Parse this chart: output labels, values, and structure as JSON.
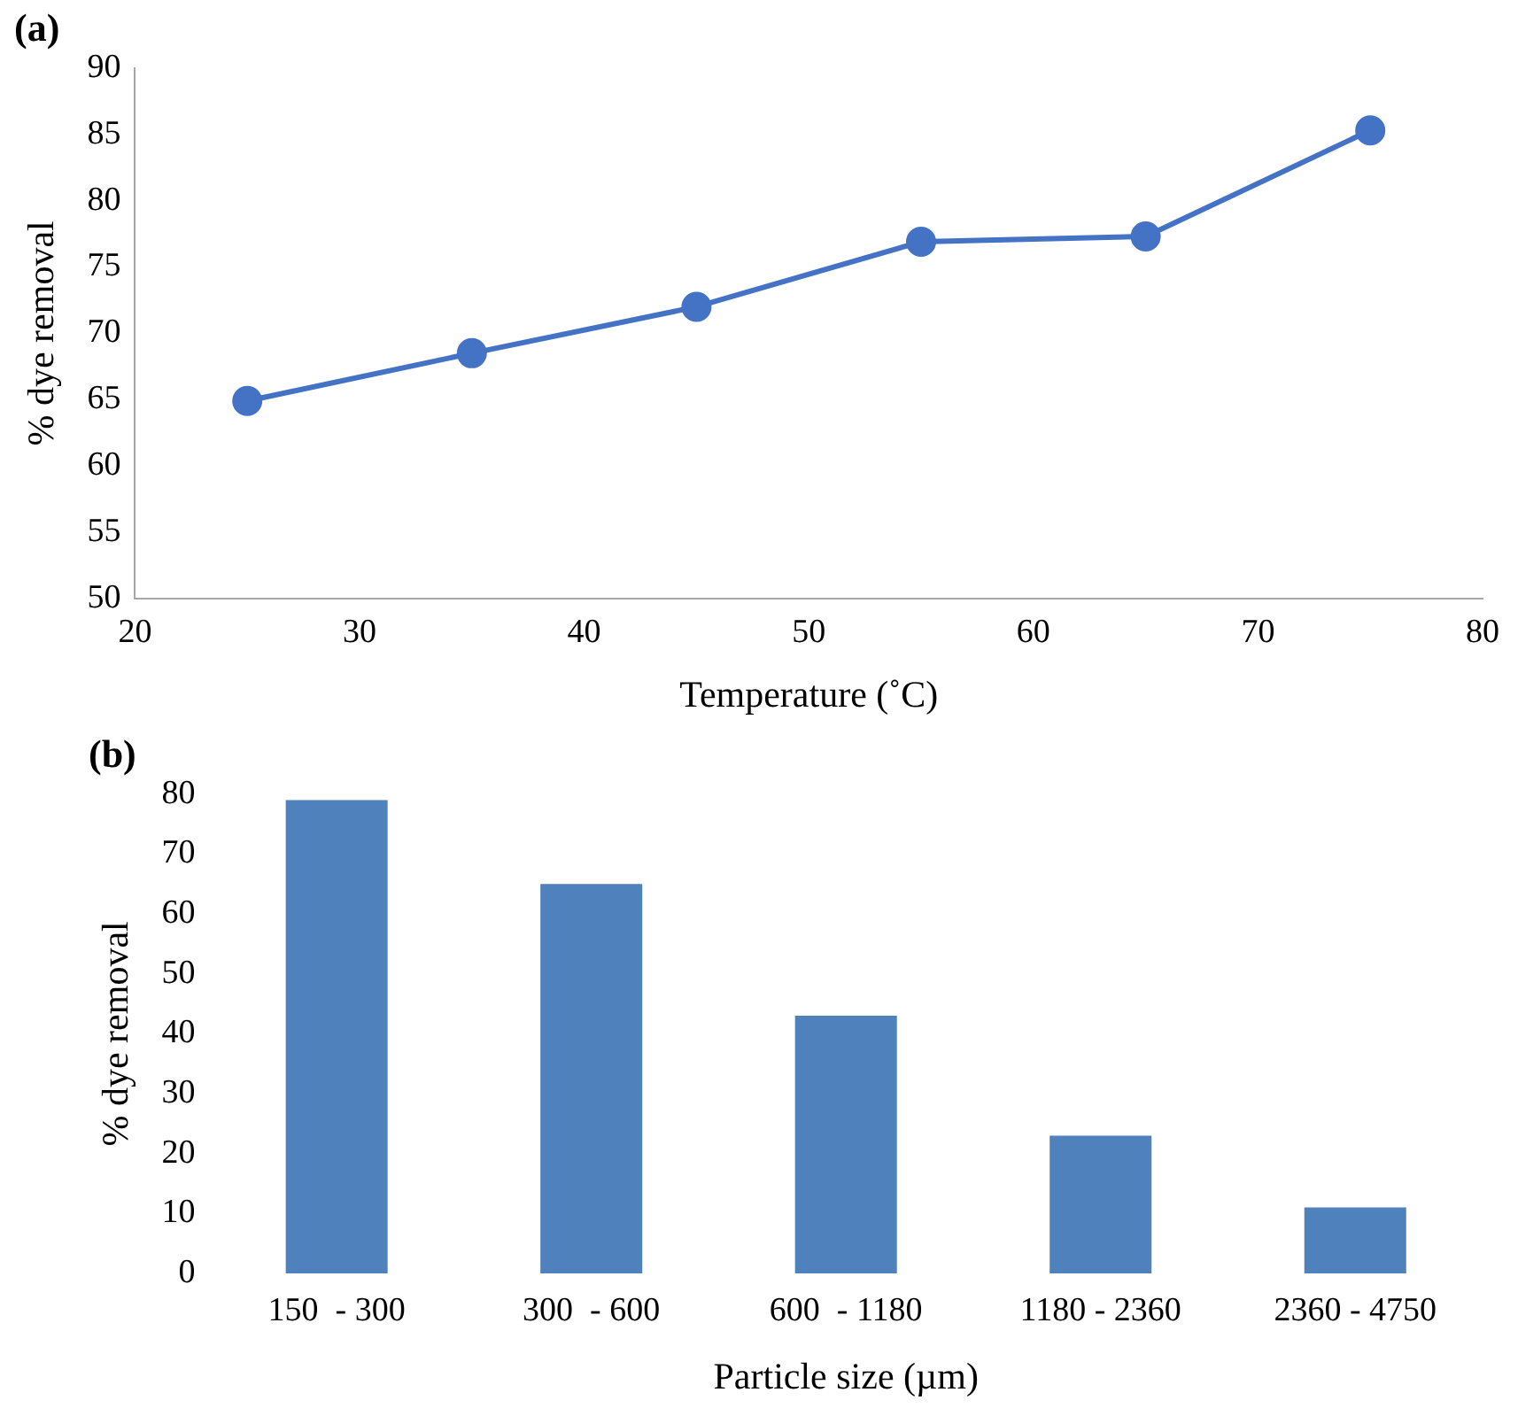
{
  "chart_data": [
    {
      "type": "line",
      "title": "(a)",
      "xlabel": "Temperature (˚C)",
      "ylabel": "% dye removal",
      "x": [
        25,
        35,
        45,
        55,
        65,
        75
      ],
      "values": [
        64.9,
        68.5,
        72.0,
        76.9,
        77.3,
        85.3
      ],
      "color": "#4472c4",
      "xlim": [
        20,
        80
      ],
      "xticks": [
        20,
        30,
        40,
        50,
        60,
        70,
        80
      ],
      "ylim": [
        50,
        90
      ],
      "yticks": [
        50,
        55,
        60,
        65,
        70,
        75,
        80,
        85,
        90
      ],
      "grid": false,
      "legend": false,
      "marker": "circle",
      "line_style": "solid"
    },
    {
      "type": "bar",
      "title": "(b)",
      "xlabel": "Particle size (µm)",
      "ylabel": "% dye removal",
      "categories": [
        "150  - 300",
        "300  - 600",
        "600  - 1180",
        "1180 - 2360",
        "2360 - 4750"
      ],
      "values": [
        79,
        65,
        43,
        23,
        11
      ],
      "color": "#4f81bd",
      "ylim": [
        0,
        80
      ],
      "yticks": [
        0,
        10,
        20,
        30,
        40,
        50,
        60,
        70,
        80
      ],
      "grid": false,
      "legend": false
    }
  ]
}
